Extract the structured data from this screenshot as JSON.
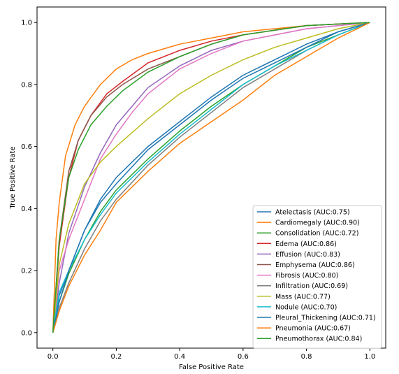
{
  "chart_data": {
    "type": "line",
    "title": "",
    "xlabel": "False Positive Rate",
    "ylabel": "True Positive Rate",
    "xlim": [
      -0.05,
      1.05
    ],
    "ylim": [
      -0.05,
      1.05
    ],
    "xticks": [
      "0.0",
      "0.2",
      "0.4",
      "0.6",
      "0.8",
      "1.0"
    ],
    "yticks": [
      "0.0",
      "0.2",
      "0.4",
      "0.6",
      "0.8",
      "1.0"
    ],
    "grid": false,
    "legend_position": "lower-right",
    "series": [
      {
        "name": "Atelectasis (AUC:0.75)",
        "color": "#1f77b4",
        "points": [
          [
            0,
            0
          ],
          [
            0.02,
            0.12
          ],
          [
            0.05,
            0.2
          ],
          [
            0.1,
            0.33
          ],
          [
            0.15,
            0.43
          ],
          [
            0.2,
            0.5
          ],
          [
            0.3,
            0.6
          ],
          [
            0.4,
            0.68
          ],
          [
            0.5,
            0.76
          ],
          [
            0.6,
            0.83
          ],
          [
            0.7,
            0.88
          ],
          [
            0.8,
            0.93
          ],
          [
            0.9,
            0.97
          ],
          [
            1,
            1
          ]
        ]
      },
      {
        "name": "Cardiomegaly (AUC:0.90)",
        "color": "#ff7f0e",
        "points": [
          [
            0,
            0
          ],
          [
            0.01,
            0.3
          ],
          [
            0.02,
            0.42
          ],
          [
            0.04,
            0.57
          ],
          [
            0.07,
            0.67
          ],
          [
            0.1,
            0.73
          ],
          [
            0.15,
            0.8
          ],
          [
            0.2,
            0.85
          ],
          [
            0.25,
            0.88
          ],
          [
            0.3,
            0.9
          ],
          [
            0.4,
            0.93
          ],
          [
            0.5,
            0.95
          ],
          [
            0.6,
            0.97
          ],
          [
            0.8,
            0.99
          ],
          [
            1,
            1
          ]
        ]
      },
      {
        "name": "Consolidation (AUC:0.72)",
        "color": "#2ca02c",
        "points": [
          [
            0,
            0
          ],
          [
            0.02,
            0.1
          ],
          [
            0.05,
            0.19
          ],
          [
            0.1,
            0.3
          ],
          [
            0.15,
            0.39
          ],
          [
            0.2,
            0.46
          ],
          [
            0.3,
            0.56
          ],
          [
            0.4,
            0.65
          ],
          [
            0.5,
            0.73
          ],
          [
            0.6,
            0.8
          ],
          [
            0.7,
            0.86
          ],
          [
            0.8,
            0.92
          ],
          [
            0.9,
            0.96
          ],
          [
            1,
            1
          ]
        ]
      },
      {
        "name": "Edema (AUC:0.86)",
        "color": "#d62728",
        "points": [
          [
            0,
            0
          ],
          [
            0.02,
            0.28
          ],
          [
            0.05,
            0.5
          ],
          [
            0.08,
            0.62
          ],
          [
            0.12,
            0.7
          ],
          [
            0.17,
            0.77
          ],
          [
            0.22,
            0.81
          ],
          [
            0.3,
            0.87
          ],
          [
            0.4,
            0.91
          ],
          [
            0.5,
            0.94
          ],
          [
            0.6,
            0.96
          ],
          [
            0.8,
            0.99
          ],
          [
            1,
            1
          ]
        ]
      },
      {
        "name": "Effusion (AUC:0.83)",
        "color": "#9467bd",
        "points": [
          [
            0,
            0
          ],
          [
            0.02,
            0.16
          ],
          [
            0.05,
            0.32
          ],
          [
            0.1,
            0.47
          ],
          [
            0.15,
            0.58
          ],
          [
            0.2,
            0.67
          ],
          [
            0.3,
            0.79
          ],
          [
            0.4,
            0.86
          ],
          [
            0.5,
            0.91
          ],
          [
            0.6,
            0.94
          ],
          [
            0.8,
            0.98
          ],
          [
            1,
            1
          ]
        ]
      },
      {
        "name": "Emphysema (AUC:0.86)",
        "color": "#8c564b",
        "points": [
          [
            0,
            0
          ],
          [
            0.02,
            0.3
          ],
          [
            0.05,
            0.52
          ],
          [
            0.08,
            0.62
          ],
          [
            0.12,
            0.7
          ],
          [
            0.17,
            0.76
          ],
          [
            0.22,
            0.8
          ],
          [
            0.3,
            0.85
          ],
          [
            0.4,
            0.89
          ],
          [
            0.5,
            0.93
          ],
          [
            0.6,
            0.96
          ],
          [
            0.8,
            0.99
          ],
          [
            1,
            1
          ]
        ]
      },
      {
        "name": "Fibrosis (AUC:0.80)",
        "color": "#e377c2",
        "points": [
          [
            0,
            0
          ],
          [
            0.02,
            0.2
          ],
          [
            0.05,
            0.3
          ],
          [
            0.1,
            0.43
          ],
          [
            0.15,
            0.56
          ],
          [
            0.2,
            0.64
          ],
          [
            0.25,
            0.71
          ],
          [
            0.3,
            0.77
          ],
          [
            0.4,
            0.85
          ],
          [
            0.5,
            0.9
          ],
          [
            0.6,
            0.94
          ],
          [
            0.8,
            0.98
          ],
          [
            1,
            1
          ]
        ]
      },
      {
        "name": "Infiltration (AUC:0.69)",
        "color": "#7f7f7f",
        "points": [
          [
            0,
            0
          ],
          [
            0.02,
            0.08
          ],
          [
            0.05,
            0.16
          ],
          [
            0.1,
            0.27
          ],
          [
            0.15,
            0.36
          ],
          [
            0.2,
            0.43
          ],
          [
            0.3,
            0.54
          ],
          [
            0.4,
            0.63
          ],
          [
            0.5,
            0.71
          ],
          [
            0.6,
            0.79
          ],
          [
            0.7,
            0.85
          ],
          [
            0.8,
            0.91
          ],
          [
            0.9,
            0.96
          ],
          [
            1,
            1
          ]
        ]
      },
      {
        "name": "Mass (AUC:0.77)",
        "color": "#bcbd22",
        "points": [
          [
            0,
            0
          ],
          [
            0.02,
            0.22
          ],
          [
            0.05,
            0.35
          ],
          [
            0.1,
            0.48
          ],
          [
            0.15,
            0.55
          ],
          [
            0.2,
            0.6
          ],
          [
            0.3,
            0.69
          ],
          [
            0.4,
            0.77
          ],
          [
            0.5,
            0.83
          ],
          [
            0.6,
            0.88
          ],
          [
            0.7,
            0.92
          ],
          [
            0.8,
            0.95
          ],
          [
            0.9,
            0.98
          ],
          [
            1,
            1
          ]
        ]
      },
      {
        "name": "Nodule (AUC:0.70)",
        "color": "#17becf",
        "points": [
          [
            0,
            0
          ],
          [
            0.02,
            0.13
          ],
          [
            0.05,
            0.2
          ],
          [
            0.1,
            0.3
          ],
          [
            0.15,
            0.38
          ],
          [
            0.2,
            0.45
          ],
          [
            0.3,
            0.55
          ],
          [
            0.4,
            0.64
          ],
          [
            0.5,
            0.72
          ],
          [
            0.6,
            0.8
          ],
          [
            0.7,
            0.86
          ],
          [
            0.8,
            0.91
          ],
          [
            0.9,
            0.96
          ],
          [
            1,
            1
          ]
        ]
      },
      {
        "name": "Pleural_Thickening (AUC:0.71)",
        "color": "#1f77b4",
        "points": [
          [
            0,
            0
          ],
          [
            0.02,
            0.1
          ],
          [
            0.05,
            0.2
          ],
          [
            0.1,
            0.33
          ],
          [
            0.15,
            0.42
          ],
          [
            0.2,
            0.48
          ],
          [
            0.3,
            0.59
          ],
          [
            0.4,
            0.67
          ],
          [
            0.5,
            0.75
          ],
          [
            0.6,
            0.82
          ],
          [
            0.7,
            0.87
          ],
          [
            0.8,
            0.92
          ],
          [
            0.9,
            0.97
          ],
          [
            1,
            1
          ]
        ]
      },
      {
        "name": "Pneumonia (AUC:0.67)",
        "color": "#ff7f0e",
        "points": [
          [
            0,
            0
          ],
          [
            0.02,
            0.07
          ],
          [
            0.05,
            0.15
          ],
          [
            0.1,
            0.25
          ],
          [
            0.15,
            0.33
          ],
          [
            0.2,
            0.42
          ],
          [
            0.3,
            0.52
          ],
          [
            0.4,
            0.61
          ],
          [
            0.5,
            0.68
          ],
          [
            0.6,
            0.75
          ],
          [
            0.7,
            0.83
          ],
          [
            0.8,
            0.89
          ],
          [
            0.9,
            0.95
          ],
          [
            1,
            1
          ]
        ]
      },
      {
        "name": "Pneumothorax (AUC:0.84)",
        "color": "#2ca02c",
        "points": [
          [
            0,
            0
          ],
          [
            0.02,
            0.3
          ],
          [
            0.05,
            0.5
          ],
          [
            0.08,
            0.59
          ],
          [
            0.12,
            0.67
          ],
          [
            0.17,
            0.73
          ],
          [
            0.22,
            0.78
          ],
          [
            0.3,
            0.84
          ],
          [
            0.4,
            0.89
          ],
          [
            0.5,
            0.93
          ],
          [
            0.6,
            0.96
          ],
          [
            0.8,
            0.99
          ],
          [
            1,
            1
          ]
        ]
      }
    ]
  }
}
